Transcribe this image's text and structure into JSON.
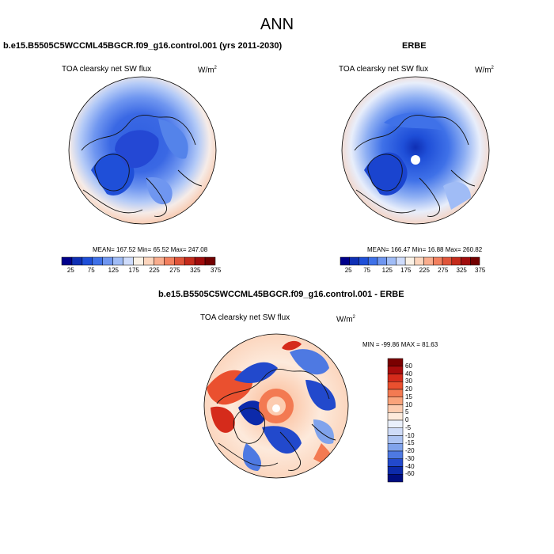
{
  "page_title": "ANN",
  "panels": [
    {
      "title": "b.e15.B5505C5WCCML45BGCR.f09_g16.control.001 (yrs 2011-2030)",
      "field": "TOA clearsky net SW flux",
      "units": "W/m",
      "units_sup": "2",
      "stats": "MEAN= 167.52  Min=  65.52  Max= 247.08",
      "mean": 167.52,
      "min": 65.52,
      "max": 247.08,
      "colorbar_labels": [
        "25",
        "75",
        "125",
        "175",
        "225",
        "275",
        "325",
        "375"
      ]
    },
    {
      "title": "ERBE",
      "field": "TOA clearsky net SW flux",
      "units": "W/m",
      "units_sup": "2",
      "stats": "MEAN= 166.47  Min=  16.88  Max= 260.82",
      "mean": 166.47,
      "min": 16.88,
      "max": 260.82,
      "colorbar_labels": [
        "25",
        "75",
        "125",
        "175",
        "225",
        "275",
        "325",
        "375"
      ]
    },
    {
      "title": "b.e15.B5505C5WCCML45BGCR.f09_g16.control.001 - ERBE",
      "field": "TOA clearsky net SW flux",
      "units": "W/m",
      "units_sup": "2",
      "stats": "MIN = -99.86  MAX =  81.63",
      "min": -99.86,
      "max": 81.63,
      "colorbar_labels": [
        "60",
        "40",
        "30",
        "20",
        "15",
        "10",
        "5",
        "0",
        "-5",
        "-10",
        "-15",
        "-20",
        "-30",
        "-40",
        "-60"
      ]
    }
  ],
  "colors": {
    "abs_scale": [
      "#00008b",
      "#0f2fb4",
      "#1f4fd8",
      "#3f71e8",
      "#6f96f0",
      "#a0bcf6",
      "#cfdcfb",
      "#fbf2e6",
      "#fcd5bd",
      "#f9ad8e",
      "#f2805f",
      "#e0553a",
      "#c42b1c",
      "#a00c0c",
      "#720000"
    ],
    "diff_scale": [
      "#7a0000",
      "#a80c0c",
      "#d52b1b",
      "#ea502f",
      "#f37a52",
      "#f9a37b",
      "#fcccb0",
      "#fdeadc",
      "#eaf0fb",
      "#cfdcf8",
      "#adc4f3",
      "#80a3ec",
      "#4e79e2",
      "#2249cc",
      "#0c2aaa",
      "#000d80"
    ],
    "land": "#222222"
  }
}
